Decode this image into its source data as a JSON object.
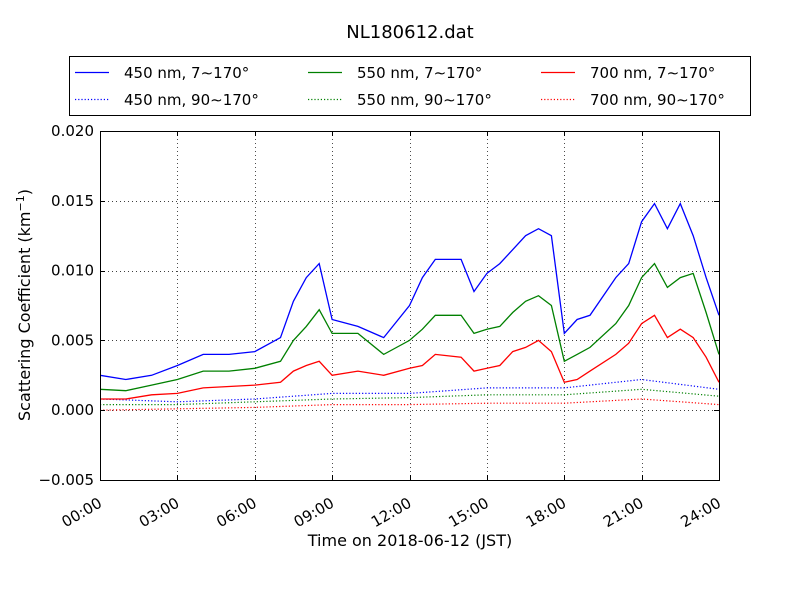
{
  "chart_data": {
    "type": "line",
    "title": "NL180612.dat",
    "xlabel": "Time on 2018-06-12 (JST)",
    "ylabel": "Scattering Coefficient (km",
    "ylabel_sup": "−1",
    "ylabel_suffix": ")",
    "xlim": [
      0,
      24
    ],
    "ylim": [
      -0.005,
      0.02
    ],
    "x_ticks": [
      0,
      3,
      6,
      9,
      12,
      15,
      18,
      21,
      24
    ],
    "x_tick_labels": [
      "00:00",
      "03:00",
      "06:00",
      "09:00",
      "12:00",
      "15:00",
      "18:00",
      "21:00",
      "24:00"
    ],
    "y_ticks": [
      -0.005,
      0.0,
      0.005,
      0.01,
      0.015,
      0.02
    ],
    "y_tick_labels": [
      "−0.005",
      "0.000",
      "0.005",
      "0.010",
      "0.015",
      "0.020"
    ],
    "grid": true,
    "legend_position": "top",
    "x_unit": "hours",
    "colors": {
      "blue": "#0000ff",
      "green": "#008000",
      "red": "#ff0000"
    },
    "series": [
      {
        "name": "450 nm, 7∼170°",
        "color": "#0000ff",
        "style": "solid",
        "x": [
          0,
          1,
          2,
          3,
          4,
          5,
          6,
          7,
          7.5,
          8,
          8.5,
          9,
          10,
          11,
          12,
          12.5,
          13,
          14,
          14.5,
          15,
          15.5,
          16,
          16.5,
          17,
          17.5,
          18,
          18.5,
          19,
          20,
          20.5,
          21,
          21.5,
          22,
          22.5,
          23,
          23.5,
          24
        ],
        "y": [
          0.0025,
          0.0022,
          0.0025,
          0.0032,
          0.004,
          0.004,
          0.0042,
          0.0052,
          0.0078,
          0.0095,
          0.0105,
          0.0065,
          0.006,
          0.0052,
          0.0075,
          0.0095,
          0.0108,
          0.0108,
          0.0085,
          0.0098,
          0.0105,
          0.0115,
          0.0125,
          0.013,
          0.0125,
          0.0055,
          0.0065,
          0.0068,
          0.0095,
          0.0105,
          0.0135,
          0.0148,
          0.013,
          0.0148,
          0.0125,
          0.0095,
          0.0068
        ]
      },
      {
        "name": "450 nm, 90∼170°",
        "color": "#0000ff",
        "style": "dotted",
        "x": [
          0,
          3,
          6,
          9,
          12,
          15,
          18,
          21,
          24
        ],
        "y": [
          0.0008,
          0.0006,
          0.0008,
          0.0012,
          0.0012,
          0.0016,
          0.0016,
          0.0022,
          0.0015
        ]
      },
      {
        "name": "550 nm, 7∼170°",
        "color": "#008000",
        "style": "solid",
        "x": [
          0,
          1,
          2,
          3,
          4,
          5,
          6,
          7,
          7.5,
          8,
          8.5,
          9,
          10,
          11,
          12,
          12.5,
          13,
          14,
          14.5,
          15,
          15.5,
          16,
          16.5,
          17,
          17.5,
          18,
          18.5,
          19,
          20,
          20.5,
          21,
          21.5,
          22,
          22.5,
          23,
          23.5,
          24
        ],
        "y": [
          0.0015,
          0.0014,
          0.0018,
          0.0022,
          0.0028,
          0.0028,
          0.003,
          0.0035,
          0.005,
          0.006,
          0.0072,
          0.0055,
          0.0055,
          0.004,
          0.005,
          0.0058,
          0.0068,
          0.0068,
          0.0055,
          0.0058,
          0.006,
          0.007,
          0.0078,
          0.0082,
          0.0075,
          0.0035,
          0.004,
          0.0045,
          0.0062,
          0.0075,
          0.0095,
          0.0105,
          0.0088,
          0.0095,
          0.0098,
          0.007,
          0.004
        ]
      },
      {
        "name": "550 nm, 90∼170°",
        "color": "#008000",
        "style": "dotted",
        "x": [
          0,
          3,
          6,
          9,
          12,
          15,
          18,
          21,
          24
        ],
        "y": [
          0.0004,
          0.0004,
          0.0006,
          0.0008,
          0.0009,
          0.0011,
          0.0011,
          0.0015,
          0.001
        ]
      },
      {
        "name": "700 nm, 7∼170°",
        "color": "#ff0000",
        "style": "solid",
        "x": [
          0,
          1,
          2,
          3,
          4,
          5,
          6,
          7,
          7.5,
          8,
          8.5,
          9,
          10,
          11,
          12,
          12.5,
          13,
          14,
          14.5,
          15,
          15.5,
          16,
          16.5,
          17,
          17.5,
          18,
          18.5,
          19,
          20,
          20.5,
          21,
          21.5,
          22,
          22.5,
          23,
          23.5,
          24
        ],
        "y": [
          0.0008,
          0.0008,
          0.0011,
          0.0012,
          0.0016,
          0.0017,
          0.0018,
          0.002,
          0.0028,
          0.0032,
          0.0035,
          0.0025,
          0.0028,
          0.0025,
          0.003,
          0.0032,
          0.004,
          0.0038,
          0.0028,
          0.003,
          0.0032,
          0.0042,
          0.0045,
          0.005,
          0.0042,
          0.002,
          0.0022,
          0.0028,
          0.004,
          0.0048,
          0.0062,
          0.0068,
          0.0052,
          0.0058,
          0.0052,
          0.0038,
          0.002
        ]
      },
      {
        "name": "700 nm, 90∼170°",
        "color": "#ff0000",
        "style": "dotted",
        "x": [
          0,
          3,
          6,
          9,
          12,
          15,
          18,
          21,
          24
        ],
        "y": [
          0.0,
          0.0001,
          0.0002,
          0.0004,
          0.0004,
          0.0005,
          0.0005,
          0.0008,
          0.0004
        ]
      }
    ]
  }
}
